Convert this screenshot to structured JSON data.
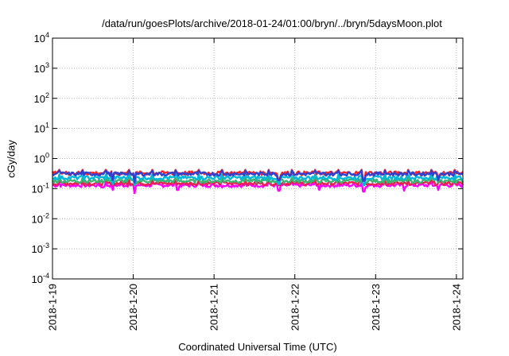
{
  "chart_data": {
    "type": "line",
    "title": "/data/run/goesPlots/archive/2018-01-24/01:00/bryn/../bryn/5daysMoon.plot",
    "xlabel": "Coordinated Universal Time (UTC)",
    "ylabel": "cGy/day",
    "yscale": "log",
    "ylim": [
      0.0001,
      10000
    ],
    "grid": true,
    "x_tick_labels": [
      "2018-1-19",
      "2018-1-20",
      "2018-1-21",
      "2018-1-22",
      "2018-1-23",
      "2018-1-24"
    ],
    "x_tick_days": [
      0,
      1,
      2,
      3,
      4,
      5
    ],
    "xlim_days": [
      0,
      5.08
    ],
    "y_ticks": [
      {
        "base": "10",
        "exp": "-4"
      },
      {
        "base": "10",
        "exp": "-3"
      },
      {
        "base": "10",
        "exp": "-2"
      },
      {
        "base": "10",
        "exp": "-1"
      },
      {
        "base": "10",
        "exp": "0"
      },
      {
        "base": "10",
        "exp": "1"
      },
      {
        "base": "10",
        "exp": "2"
      },
      {
        "base": "10",
        "exp": "3"
      },
      {
        "base": "10",
        "exp": "4"
      }
    ],
    "series": [
      {
        "color": "#ff00ff",
        "base": 0.13,
        "dips": [
          [
            0.62,
            0.11
          ],
          [
            0.75,
            0.09
          ],
          [
            1.02,
            0.07
          ],
          [
            1.55,
            0.09
          ],
          [
            2.1,
            0.11
          ],
          [
            2.8,
            0.085
          ],
          [
            3.3,
            0.09
          ],
          [
            3.85,
            0.08
          ],
          [
            4.35,
            0.085
          ],
          [
            4.78,
            0.09
          ]
        ]
      },
      {
        "color": "#e8204d",
        "base": 0.15,
        "dips": []
      },
      {
        "color": "#3cb371",
        "base": 0.18,
        "dips": []
      },
      {
        "color": "#00b8d9",
        "base": 0.23,
        "dips": [
          [
            0.75,
            0.14
          ],
          [
            1.02,
            0.13
          ],
          [
            2.8,
            0.14
          ],
          [
            3.85,
            0.13
          ]
        ]
      },
      {
        "color": "#ff2020",
        "base": 0.33,
        "dips": [
          [
            0.75,
            0.2
          ],
          [
            1.02,
            0.17
          ],
          [
            2.8,
            0.2
          ],
          [
            3.85,
            0.19
          ],
          [
            4.78,
            0.2
          ]
        ]
      },
      {
        "color": "#3040d0",
        "base": 0.31,
        "dips": [
          [
            0.75,
            0.19
          ],
          [
            1.02,
            0.16
          ],
          [
            2.8,
            0.19
          ],
          [
            3.85,
            0.18
          ],
          [
            4.78,
            0.19
          ]
        ]
      }
    ]
  }
}
